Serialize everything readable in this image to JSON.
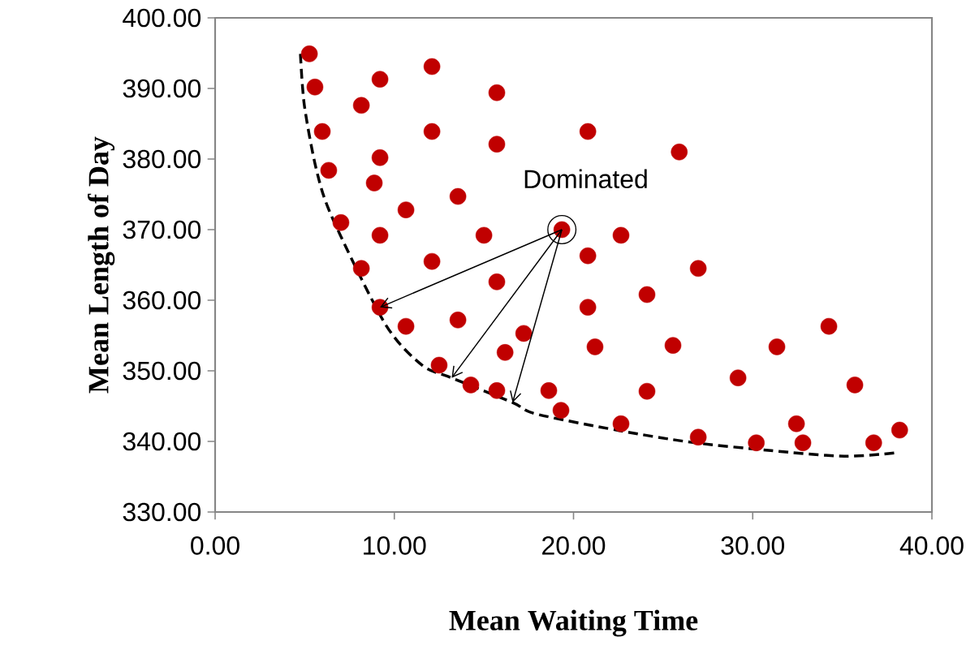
{
  "chart_data": {
    "type": "scatter",
    "xlabel": "Mean Waiting Time",
    "ylabel": "Mean Length of Day",
    "xlim": [
      0,
      40
    ],
    "ylim": [
      330,
      400
    ],
    "xticks": [
      {
        "value": 0,
        "label": "0.00"
      },
      {
        "value": 10,
        "label": "10.00"
      },
      {
        "value": 20,
        "label": "20.00"
      },
      {
        "value": 30,
        "label": "30.00"
      },
      {
        "value": 40,
        "label": "40.00"
      }
    ],
    "yticks": [
      {
        "value": 330,
        "label": "330.00"
      },
      {
        "value": 340,
        "label": "340.00"
      },
      {
        "value": 350,
        "label": "350.00"
      },
      {
        "value": 360,
        "label": "360.00"
      },
      {
        "value": 370,
        "label": "370.00"
      },
      {
        "value": 380,
        "label": "380.00"
      },
      {
        "value": 390,
        "label": "390.00"
      },
      {
        "value": 400,
        "label": "400.00"
      }
    ],
    "annotations": [
      {
        "text": "Dominated",
        "x": 19.35,
        "y": 370
      }
    ],
    "series": [
      {
        "type": "scatter",
        "color": "#c00000",
        "marker": "circle",
        "x": [
          5.26,
          5.57,
          5.98,
          6.34,
          7.02,
          8.16,
          8.16,
          9.2,
          9.2,
          8.88,
          9.2,
          9.2,
          10.65,
          10.65,
          12.1,
          12.1,
          12.1,
          12.5,
          13.55,
          13.55,
          14.27,
          15.0,
          15.72,
          15.72,
          15.72,
          15.72,
          16.18,
          17.22,
          18.62,
          19.3,
          19.35,
          20.8,
          20.8,
          20.8,
          21.2,
          22.65,
          22.65,
          24.1,
          24.1,
          25.55,
          25.9,
          26.96,
          26.96,
          29.18,
          30.2,
          31.35,
          32.44,
          32.8,
          34.25,
          35.7,
          36.75,
          38.2
        ],
        "values": [
          394.9,
          390.2,
          383.9,
          378.4,
          371.0,
          364.5,
          387.6,
          391.3,
          380.2,
          376.6,
          369.2,
          359.0,
          372.8,
          356.3,
          393.1,
          383.9,
          365.5,
          350.8,
          374.7,
          357.2,
          348.0,
          369.2,
          389.4,
          382.1,
          362.6,
          347.2,
          352.6,
          355.3,
          347.2,
          344.4,
          370.0,
          383.9,
          366.3,
          359.0,
          353.4,
          369.2,
          342.5,
          360.8,
          347.1,
          353.6,
          381.0,
          364.5,
          340.6,
          349.0,
          339.8,
          353.4,
          342.5,
          339.8,
          356.3,
          348.0,
          339.8,
          341.6
        ]
      },
      {
        "type": "line",
        "color": "#000000",
        "marker": "none",
        "line_style": "dashed",
        "x": [
          4.76,
          4.98,
          5.66,
          6.57,
          9.5,
          11.55,
          13.2,
          16.6,
          17.9,
          22.4,
          26.5,
          31.0,
          35.1,
          38.06
        ],
        "values": [
          394.9,
          387.6,
          378.4,
          371.5,
          356.6,
          350.8,
          349.0,
          345.5,
          343.9,
          341.6,
          339.9,
          338.7,
          337.9,
          338.4
        ]
      }
    ]
  }
}
